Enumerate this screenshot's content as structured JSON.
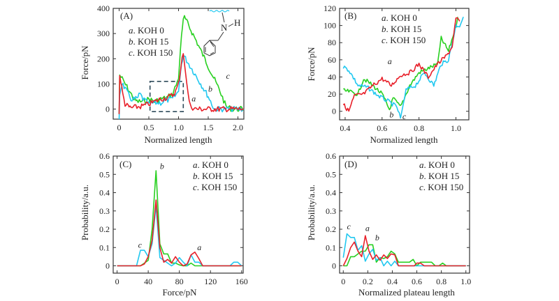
{
  "colors": {
    "a": "#e8202a",
    "b": "#22c8f0",
    "c": "#28d020",
    "frame": "#333333",
    "dashed_box": "#2e4a5a",
    "molecule_wave": "#22c8f0"
  },
  "chart_data": [
    {
      "id": "A",
      "type": "line",
      "panel_label": "(A)",
      "xlabel": "Normalized length",
      "ylabel": "Force/pN",
      "xlim": [
        -0.1,
        2.1
      ],
      "ylim": [
        -40,
        400
      ],
      "xticks": [
        0,
        0.5,
        1.0,
        1.5,
        2.0
      ],
      "xtick_labels": [
        "0",
        "0.5",
        "1.0",
        "1.5",
        "2.0"
      ],
      "yticks": [
        0,
        100,
        200,
        300,
        400
      ],
      "ytick_labels": [
        "0",
        "100",
        "200",
        "300",
        "400"
      ],
      "legend": [
        {
          "letter": "a",
          "text": ". KOH 0"
        },
        {
          "letter": "b",
          "text": ". KOH 15"
        },
        {
          "letter": "c",
          "text": ". KOH 150"
        }
      ],
      "legend_position": "top-left",
      "annotations": [
        {
          "text": "a",
          "x": 1.22,
          "y": 30
        },
        {
          "text": "b",
          "x": 1.5,
          "y": 70
        },
        {
          "text": "c",
          "x": 1.8,
          "y": 120
        }
      ],
      "molecule_labels": {
        "n": "N",
        "h": "H"
      },
      "zoom_box": {
        "x0": 0.52,
        "x1": 1.08,
        "y0": -10,
        "y1": 110
      },
      "series": [
        {
          "name": "a",
          "label": "KOH 0",
          "x": [
            0,
            0.01,
            0.03,
            0.06,
            0.1,
            0.15,
            0.2,
            0.3,
            0.4,
            0.5,
            0.6,
            0.7,
            0.8,
            0.9,
            0.95,
            1.0,
            1.03,
            1.06,
            1.08,
            1.12,
            1.16,
            1.2,
            1.3,
            1.5,
            1.7,
            1.9,
            2.1
          ],
          "y": [
            -20,
            130,
            110,
            60,
            20,
            10,
            5,
            8,
            12,
            20,
            30,
            40,
            45,
            55,
            70,
            100,
            150,
            210,
            220,
            140,
            60,
            10,
            0,
            0,
            0,
            0,
            0
          ]
        },
        {
          "name": "b",
          "label": "KOH 15",
          "x": [
            0,
            0.01,
            0.05,
            0.1,
            0.2,
            0.3,
            0.35,
            0.4,
            0.5,
            0.6,
            0.7,
            0.8,
            0.9,
            1.0,
            1.05,
            1.08,
            1.3,
            1.5,
            1.6,
            1.7,
            1.9,
            2.1
          ],
          "y": [
            -40,
            60,
            105,
            80,
            40,
            40,
            60,
            40,
            20,
            25,
            25,
            35,
            40,
            70,
            180,
            215,
            130,
            50,
            0,
            0,
            0,
            0
          ]
        },
        {
          "name": "c",
          "label": "KOH 150",
          "x": [
            0,
            0.01,
            0.05,
            0.15,
            0.25,
            0.3,
            0.4,
            0.5,
            0.6,
            0.7,
            0.8,
            0.9,
            1.0,
            1.05,
            1.08,
            1.1,
            1.3,
            1.5,
            1.7,
            1.8,
            1.9,
            2.1
          ],
          "y": [
            -20,
            135,
            120,
            80,
            40,
            30,
            30,
            40,
            30,
            40,
            45,
            60,
            120,
            300,
            350,
            365,
            270,
            170,
            70,
            10,
            0,
            0
          ]
        }
      ]
    },
    {
      "id": "B",
      "type": "line",
      "panel_label": "(B)",
      "xlabel": "Normalized length",
      "ylabel": "Force/pN",
      "xlim": [
        0.37,
        1.07
      ],
      "ylim": [
        -10,
        120
      ],
      "xticks": [
        0.4,
        0.6,
        0.8,
        1.0
      ],
      "xtick_labels": [
        "0.4",
        "0.6",
        "0.8",
        "1.0"
      ],
      "yticks": [
        0,
        20,
        40,
        60,
        80,
        100,
        120
      ],
      "ytick_labels": [
        "0",
        "20",
        "40",
        "60",
        "80",
        "100",
        "120"
      ],
      "legend": [
        {
          "letter": "a",
          "text": ". KOH 0"
        },
        {
          "letter": "b",
          "text": ". KOH 15"
        },
        {
          "letter": "c",
          "text": ". KOH 150"
        }
      ],
      "legend_position": "top-center",
      "annotations": [
        {
          "text": "a",
          "x": 0.63,
          "y": 55
        },
        {
          "text": "b",
          "x": 0.64,
          "y": -7
        },
        {
          "text": "c",
          "x": 0.71,
          "y": -9
        }
      ],
      "series": [
        {
          "name": "a",
          "label": "KOH 0",
          "x": [
            0.39,
            0.42,
            0.45,
            0.5,
            0.55,
            0.6,
            0.65,
            0.7,
            0.75,
            0.8,
            0.85,
            0.9,
            0.95,
            0.98,
            1.0,
            1.02
          ],
          "y": [
            8,
            0,
            18,
            20,
            30,
            38,
            30,
            42,
            45,
            55,
            40,
            55,
            65,
            75,
            110,
            105
          ]
        },
        {
          "name": "b",
          "label": "KOH 15",
          "x": [
            0.39,
            0.42,
            0.47,
            0.52,
            0.58,
            0.63,
            0.68,
            0.7,
            0.73,
            0.78,
            0.83,
            0.88,
            0.92,
            0.96,
            1.0,
            1.02,
            1.04
          ],
          "y": [
            52,
            48,
            30,
            28,
            18,
            12,
            5,
            -8,
            25,
            30,
            45,
            30,
            55,
            60,
            100,
            100,
            110
          ]
        },
        {
          "name": "c",
          "label": "KOH 150",
          "x": [
            0.39,
            0.42,
            0.47,
            0.5,
            0.55,
            0.6,
            0.64,
            0.66,
            0.7,
            0.75,
            0.8,
            0.85,
            0.9,
            0.92,
            0.96,
            1.0,
            1.01
          ],
          "y": [
            24,
            23,
            20,
            38,
            30,
            20,
            2,
            15,
            5,
            30,
            45,
            50,
            55,
            85,
            70,
            100,
            110
          ]
        }
      ]
    },
    {
      "id": "C",
      "type": "line",
      "panel_label": "(C)",
      "xlabel": "Force/pN",
      "ylabel": "Probability/a.u.",
      "xlim": [
        -5,
        162
      ],
      "ylim": [
        -0.04,
        0.6
      ],
      "xticks": [
        0,
        40,
        80,
        120,
        160
      ],
      "xtick_labels": [
        "0",
        "40",
        "80",
        "120",
        "160"
      ],
      "yticks": [
        0,
        0.1,
        0.2,
        0.3,
        0.4,
        0.5,
        0.6
      ],
      "ytick_labels": [
        "0",
        "0.1",
        "0.2",
        "0.3",
        "0.4",
        "0.5",
        "0.6"
      ],
      "legend": [
        {
          "letter": "a",
          "text": ". KOH 0"
        },
        {
          "letter": "b",
          "text": ". KOH 15"
        },
        {
          "letter": "c",
          "text": ". KOH 150"
        }
      ],
      "legend_position": "top-right",
      "annotations": [
        {
          "text": "b",
          "x": 55,
          "y": 0.53
        },
        {
          "text": "c",
          "x": 27,
          "y": 0.1
        },
        {
          "text": "a",
          "x": 103,
          "y": 0.085
        }
      ],
      "series": [
        {
          "name": "a",
          "label": "KOH 0",
          "x": [
            0,
            30,
            35,
            40,
            45,
            50,
            55,
            60,
            65,
            70,
            75,
            80,
            85,
            90,
            95,
            100,
            105,
            110,
            160
          ],
          "y": [
            0,
            0,
            0.01,
            0.05,
            0.14,
            0.36,
            0.1,
            0.02,
            0.035,
            0.015,
            0.05,
            0.02,
            0,
            0.01,
            0.06,
            0.075,
            0.04,
            0,
            0
          ]
        },
        {
          "name": "b",
          "label": "KOH 15",
          "x": [
            0,
            25,
            30,
            35,
            40,
            45,
            50,
            55,
            60,
            65,
            70,
            75,
            80,
            85,
            90,
            95,
            100,
            105,
            110,
            145,
            150,
            155,
            160
          ],
          "y": [
            0,
            0,
            0.085,
            0.085,
            0.05,
            0.12,
            0.33,
            0.045,
            0.03,
            0.015,
            0,
            0.015,
            0.045,
            0.02,
            0,
            0.06,
            0.02,
            0.02,
            0,
            0,
            0.02,
            0.02,
            0
          ]
        },
        {
          "name": "c",
          "label": "KOH 150",
          "x": [
            0,
            30,
            35,
            40,
            45,
            50,
            55,
            60,
            65,
            70,
            75,
            80,
            85,
            90,
            95,
            100,
            160
          ],
          "y": [
            0,
            0,
            0.015,
            0.03,
            0.2,
            0.52,
            0.12,
            0.065,
            0.065,
            0.015,
            0.015,
            0.005,
            0,
            0,
            0.015,
            0,
            0
          ]
        }
      ]
    },
    {
      "id": "D",
      "type": "line",
      "panel_label": "(D)",
      "xlabel": "Normalized plateau length",
      "ylabel": "Probability/a.u.",
      "xlim": [
        -0.03,
        1.03
      ],
      "ylim": [
        -0.04,
        0.6
      ],
      "xticks": [
        0,
        0.2,
        0.4,
        0.6,
        0.8,
        1.0
      ],
      "xtick_labels": [
        "0",
        "0.2",
        "0.4",
        "0.6",
        "0.8",
        "1.0"
      ],
      "yticks": [
        0,
        0.1,
        0.2,
        0.3,
        0.4,
        0.5,
        0.6
      ],
      "ytick_labels": [
        "0",
        "0.1",
        "0.2",
        "0.3",
        "0.4",
        "0.5",
        "0.6"
      ],
      "legend": [
        {
          "letter": "a",
          "text": ". KOH 0"
        },
        {
          "letter": "b",
          "text": ". KOH 15"
        },
        {
          "letter": "c",
          "text": ". KOH 150"
        }
      ],
      "legend_position": "top-right",
      "annotations": [
        {
          "text": "c",
          "x": 0.03,
          "y": 0.2
        },
        {
          "text": "a",
          "x": 0.18,
          "y": 0.19
        },
        {
          "text": "b",
          "x": 0.26,
          "y": 0.14
        }
      ],
      "series": [
        {
          "name": "a",
          "label": "KOH 0",
          "x": [
            0,
            0.03,
            0.06,
            0.09,
            0.12,
            0.15,
            0.18,
            0.21,
            0.24,
            0.27,
            0.3,
            0.33,
            0.36,
            0.39,
            0.42,
            0.45,
            0.58,
            0.6,
            0.63,
            0.66,
            1.0
          ],
          "y": [
            0,
            0.04,
            0.1,
            0.13,
            0.08,
            0.05,
            0.165,
            0.08,
            0.035,
            0.06,
            0.03,
            0.06,
            0.04,
            0.065,
            0.06,
            0,
            0,
            0.015,
            0.015,
            0,
            0
          ]
        },
        {
          "name": "b",
          "label": "KOH 15",
          "x": [
            0,
            0.03,
            0.06,
            0.09,
            0.12,
            0.15,
            0.18,
            0.21,
            0.24,
            0.27,
            0.3,
            0.33,
            0.36,
            0.39,
            0.42,
            0.45,
            1.0
          ],
          "y": [
            0.045,
            0.175,
            0.155,
            0.155,
            0.085,
            0.11,
            0.025,
            0.065,
            0.09,
            0.03,
            0.045,
            0,
            0.025,
            0,
            0.025,
            0,
            0
          ]
        },
        {
          "name": "c",
          "label": "KOH 150",
          "x": [
            0,
            0.03,
            0.06,
            0.09,
            0.12,
            0.15,
            0.18,
            0.21,
            0.24,
            0.27,
            0.3,
            0.33,
            0.36,
            0.39,
            0.42,
            0.45,
            0.54,
            0.57,
            0.6,
            0.63,
            0.72,
            0.75,
            0.78,
            0.81,
            0.84,
            1.0
          ],
          "y": [
            0,
            0,
            0.05,
            0.05,
            0.065,
            0.08,
            0.08,
            0.115,
            0.115,
            0.02,
            0.045,
            0.04,
            0.05,
            0.08,
            0.065,
            0.02,
            0.02,
            0.035,
            0,
            0.02,
            0.02,
            0,
            0,
            0.015,
            0,
            0
          ]
        }
      ]
    }
  ]
}
